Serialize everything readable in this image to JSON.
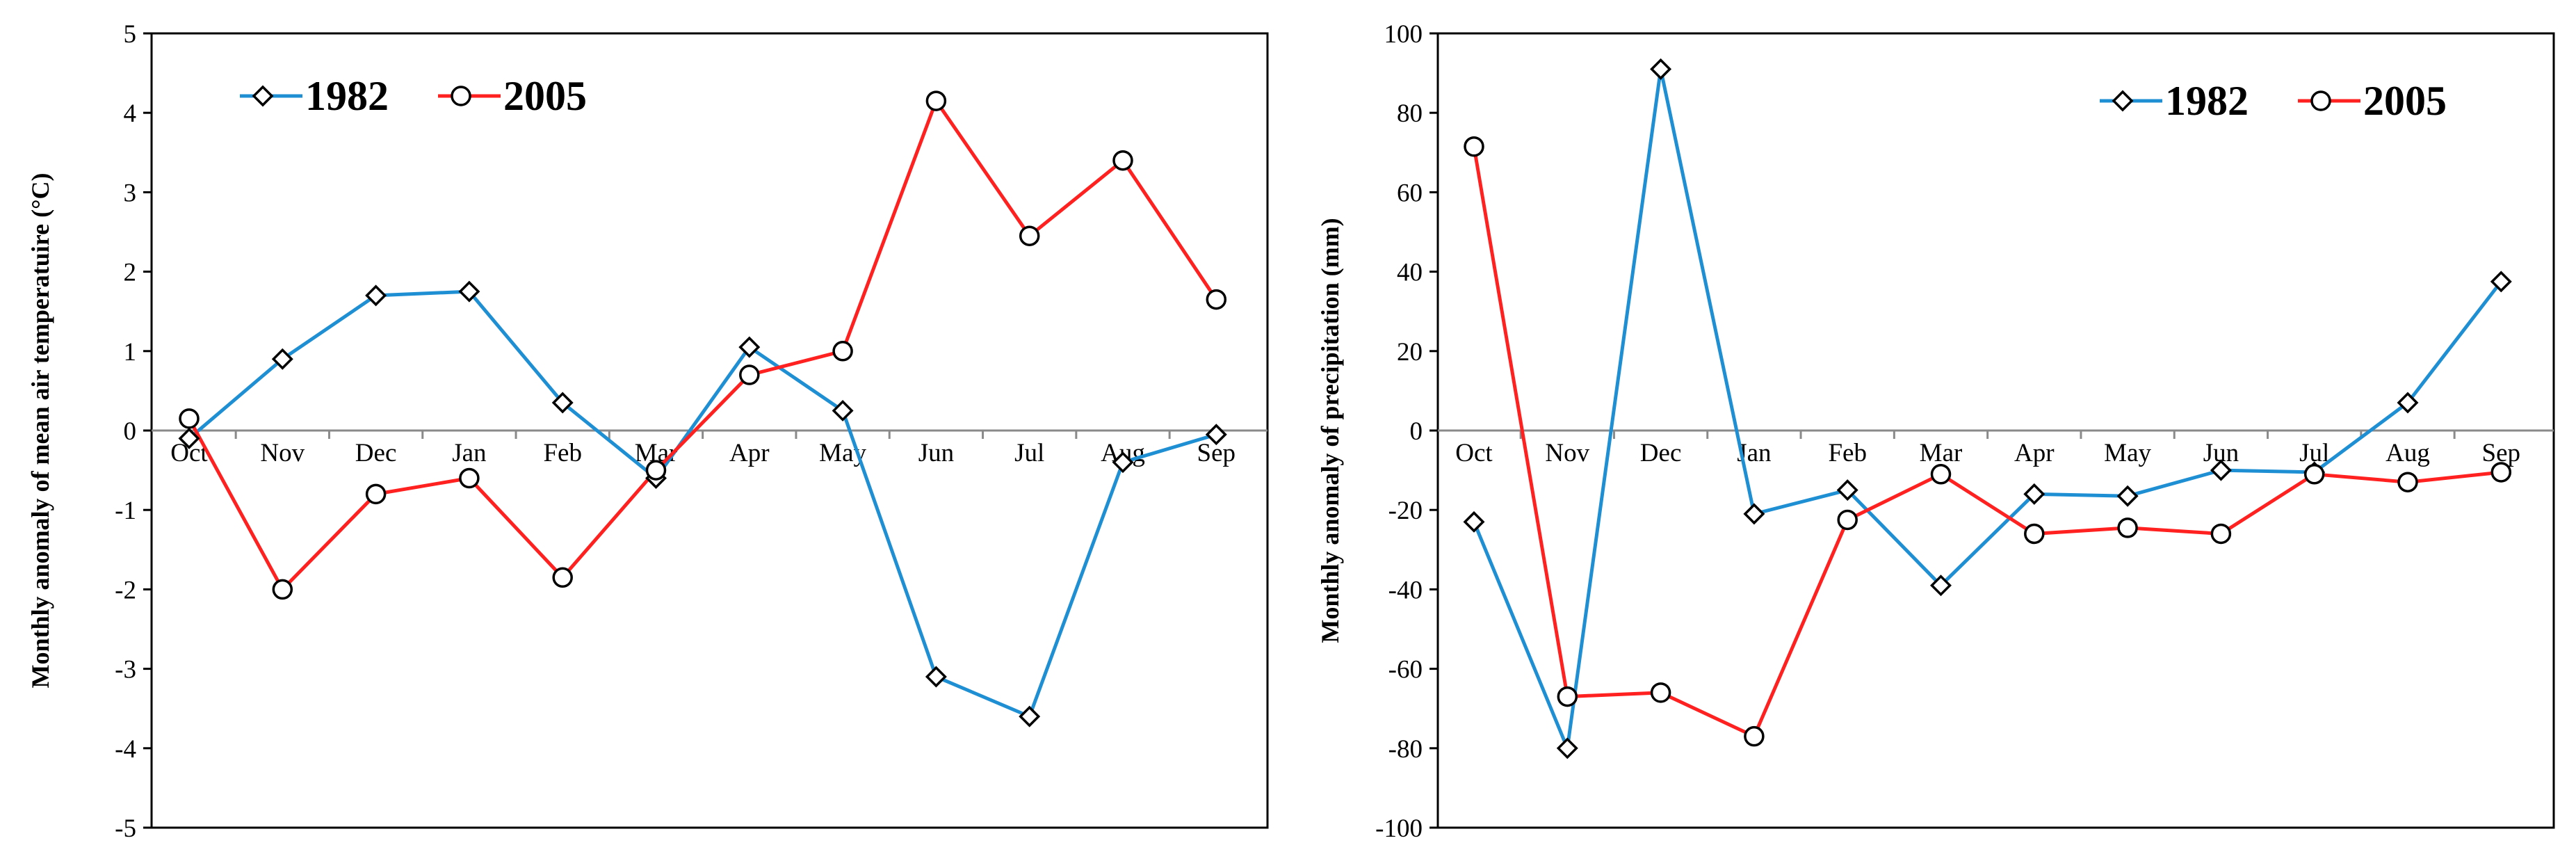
{
  "chart_data": [
    {
      "type": "line",
      "title": "",
      "xlabel": "",
      "ylabel": "Monthly anomaly of mean air temperatuire  (°C)",
      "ylim": [
        -5,
        5
      ],
      "yticks": [
        -5,
        -4,
        -3,
        -2,
        -1,
        0,
        1,
        2,
        3,
        4,
        5
      ],
      "categories": [
        "Oct",
        "Nov",
        "Dec",
        "Jan",
        "Feb",
        "Mar",
        "Apr",
        "May",
        "Jun",
        "Jul",
        "Aug",
        "Sep"
      ],
      "legend_position": "top-left",
      "series": [
        {
          "name": "1982",
          "color": "#1f8fd4",
          "marker": "diamond",
          "values": [
            -0.1,
            0.9,
            1.7,
            1.75,
            0.35,
            -0.6,
            1.05,
            0.25,
            -3.1,
            -3.6,
            -0.4,
            -0.05
          ]
        },
        {
          "name": "2005",
          "color": "#ff2020",
          "marker": "circle",
          "values": [
            0.15,
            -2.0,
            -0.8,
            -0.6,
            -1.85,
            -0.5,
            0.7,
            1.0,
            4.15,
            2.45,
            3.4,
            1.65
          ]
        }
      ]
    },
    {
      "type": "line",
      "title": "",
      "xlabel": "",
      "ylabel": "Monthly anomaly of precipitation  (mm)",
      "ylim": [
        -100,
        100
      ],
      "yticks": [
        -100,
        -80,
        -60,
        -40,
        -20,
        0,
        20,
        40,
        60,
        80,
        100
      ],
      "categories": [
        "Oct",
        "Nov",
        "Dec",
        "Jan",
        "Feb",
        "Mar",
        "Apr",
        "May",
        "Jun",
        "Jul",
        "Aug",
        "Sep"
      ],
      "legend_position": "top-right",
      "series": [
        {
          "name": "1982",
          "color": "#1f8fd4",
          "marker": "diamond",
          "values": [
            -23,
            -80,
            91,
            -21,
            -15,
            -39,
            -16,
            -16.5,
            -10,
            -10.5,
            7,
            37.5
          ]
        },
        {
          "name": "2005",
          "color": "#ff2020",
          "marker": "circle",
          "values": [
            71.5,
            -67,
            -66,
            -77,
            -22.5,
            -11,
            -26,
            -24.5,
            -26,
            -11,
            -13,
            -10.5
          ]
        }
      ]
    }
  ]
}
